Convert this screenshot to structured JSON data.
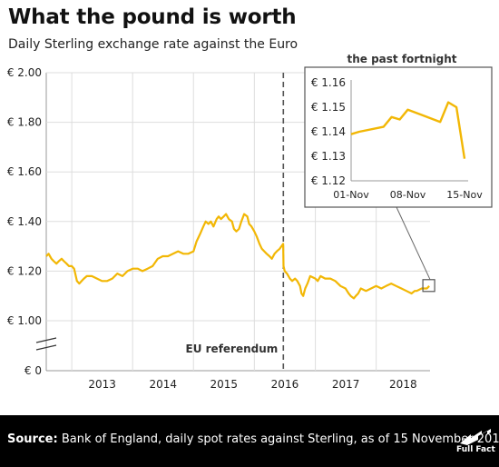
{
  "header": {
    "title": "What the pound is worth",
    "subtitle": "Daily Sterling exchange rate against the Euro"
  },
  "footer": {
    "source_label": "Source:",
    "source_text": " Bank of England, daily spot rates against Sterling, as of 15 November 2018",
    "logo_text": "Full Fact"
  },
  "colors": {
    "series": "#f2b705",
    "grid": "#dddddd",
    "dashed": "#555555",
    "footer_bg": "#000000"
  },
  "chart_data": [
    {
      "type": "line",
      "title": "What the pound is worth",
      "subtitle": "Daily Sterling exchange rate against the Euro",
      "x_tick_labels": [
        "2013",
        "2014",
        "2015",
        "2016",
        "2017",
        "2018"
      ],
      "y_tick_labels": [
        "€ 2.00",
        "€ 1.80",
        "€ 1.60",
        "€ 1.40",
        "€ 1.20",
        "€ 1.00",
        "€ 0"
      ],
      "y_ticks": [
        2.0,
        1.8,
        1.6,
        1.4,
        1.2,
        1.0
      ],
      "ylim": [
        1.0,
        2.0
      ],
      "axis_break": true,
      "xlim": [
        "2012-08",
        "2018-11"
      ],
      "annotation": {
        "label": "EU referendum",
        "date": "2016-06-23"
      },
      "series": [
        {
          "values_date": [
            "2012-08-01",
            "2012-08-15",
            "2012-09-01",
            "2012-09-15",
            "2012-10-01",
            "2012-10-15",
            "2012-11-01",
            "2012-11-15",
            "2012-12-01",
            "2012-12-15",
            "2013-01-01",
            "2013-01-15",
            "2013-02-01",
            "2013-02-15",
            "2013-03-01",
            "2013-03-15",
            "2013-04-01",
            "2013-05-01",
            "2013-06-01",
            "2013-07-01",
            "2013-08-01",
            "2013-09-01",
            "2013-10-01",
            "2013-11-01",
            "2013-12-01",
            "2014-01-01",
            "2014-02-01",
            "2014-03-01",
            "2014-04-01",
            "2014-05-01",
            "2014-06-01",
            "2014-07-01",
            "2014-08-01",
            "2014-09-01",
            "2014-10-01",
            "2014-11-01",
            "2014-12-01",
            "2015-01-01",
            "2015-01-20",
            "2015-02-10",
            "2015-03-01",
            "2015-03-15",
            "2015-04-01",
            "2015-04-15",
            "2015-05-01",
            "2015-05-20",
            "2015-06-01",
            "2015-06-15",
            "2015-07-01",
            "2015-07-15",
            "2015-08-01",
            "2015-08-20",
            "2015-09-01",
            "2015-09-15",
            "2015-10-01",
            "2015-10-15",
            "2015-11-01",
            "2015-11-20",
            "2015-12-01",
            "2015-12-15",
            "2016-01-01",
            "2016-01-15",
            "2016-02-01",
            "2016-02-15",
            "2016-03-01",
            "2016-03-15",
            "2016-04-01",
            "2016-04-15",
            "2016-05-01",
            "2016-05-15",
            "2016-06-01",
            "2016-06-22",
            "2016-06-24",
            "2016-07-01",
            "2016-07-15",
            "2016-08-01",
            "2016-08-15",
            "2016-09-01",
            "2016-09-15",
            "2016-10-01",
            "2016-10-10",
            "2016-10-20",
            "2016-11-01",
            "2016-11-15",
            "2016-12-01",
            "2017-01-01",
            "2017-01-15",
            "2017-02-01",
            "2017-03-01",
            "2017-04-01",
            "2017-05-01",
            "2017-06-01",
            "2017-07-01",
            "2017-07-20",
            "2017-08-01",
            "2017-08-20",
            "2017-09-01",
            "2017-09-15",
            "2017-10-01",
            "2017-11-01",
            "2017-12-01",
            "2018-01-01",
            "2018-02-01",
            "2018-03-01",
            "2018-04-01",
            "2018-05-01",
            "2018-06-01",
            "2018-07-01",
            "2018-08-01",
            "2018-08-20",
            "2018-09-01",
            "2018-10-01",
            "2018-11-01",
            "2018-11-15"
          ],
          "values": [
            1.26,
            1.27,
            1.25,
            1.24,
            1.23,
            1.24,
            1.25,
            1.24,
            1.23,
            1.22,
            1.22,
            1.21,
            1.16,
            1.15,
            1.16,
            1.17,
            1.18,
            1.18,
            1.17,
            1.16,
            1.16,
            1.17,
            1.19,
            1.18,
            1.2,
            1.21,
            1.21,
            1.2,
            1.21,
            1.22,
            1.25,
            1.26,
            1.26,
            1.27,
            1.28,
            1.27,
            1.27,
            1.28,
            1.32,
            1.35,
            1.38,
            1.4,
            1.39,
            1.4,
            1.38,
            1.41,
            1.42,
            1.41,
            1.42,
            1.43,
            1.41,
            1.4,
            1.37,
            1.36,
            1.37,
            1.4,
            1.43,
            1.42,
            1.39,
            1.38,
            1.36,
            1.34,
            1.31,
            1.29,
            1.28,
            1.27,
            1.26,
            1.25,
            1.27,
            1.28,
            1.29,
            1.31,
            1.22,
            1.2,
            1.19,
            1.17,
            1.16,
            1.17,
            1.16,
            1.14,
            1.11,
            1.1,
            1.13,
            1.15,
            1.18,
            1.17,
            1.16,
            1.18,
            1.17,
            1.17,
            1.16,
            1.14,
            1.13,
            1.11,
            1.1,
            1.09,
            1.1,
            1.11,
            1.13,
            1.12,
            1.13,
            1.14,
            1.13,
            1.14,
            1.15,
            1.14,
            1.13,
            1.12,
            1.11,
            1.12,
            1.12,
            1.13,
            1.13,
            1.14
          ]
        }
      ]
    },
    {
      "type": "line",
      "title": "the past fortnight",
      "x_tick_labels": [
        "01-Nov",
        "08-Nov",
        "15-Nov"
      ],
      "y_tick_labels": [
        "€ 1.16",
        "€ 1.15",
        "€ 1.14",
        "€ 1.13",
        "€ 1.12"
      ],
      "ylim": [
        1.12,
        1.16
      ],
      "xlim": [
        1,
        15
      ],
      "series": [
        {
          "x": [
            1,
            2,
            5,
            6,
            7,
            8,
            12,
            13,
            14,
            15
          ],
          "values": [
            1.139,
            1.14,
            1.142,
            1.146,
            1.145,
            1.149,
            1.144,
            1.152,
            1.15,
            1.129
          ]
        }
      ]
    }
  ]
}
